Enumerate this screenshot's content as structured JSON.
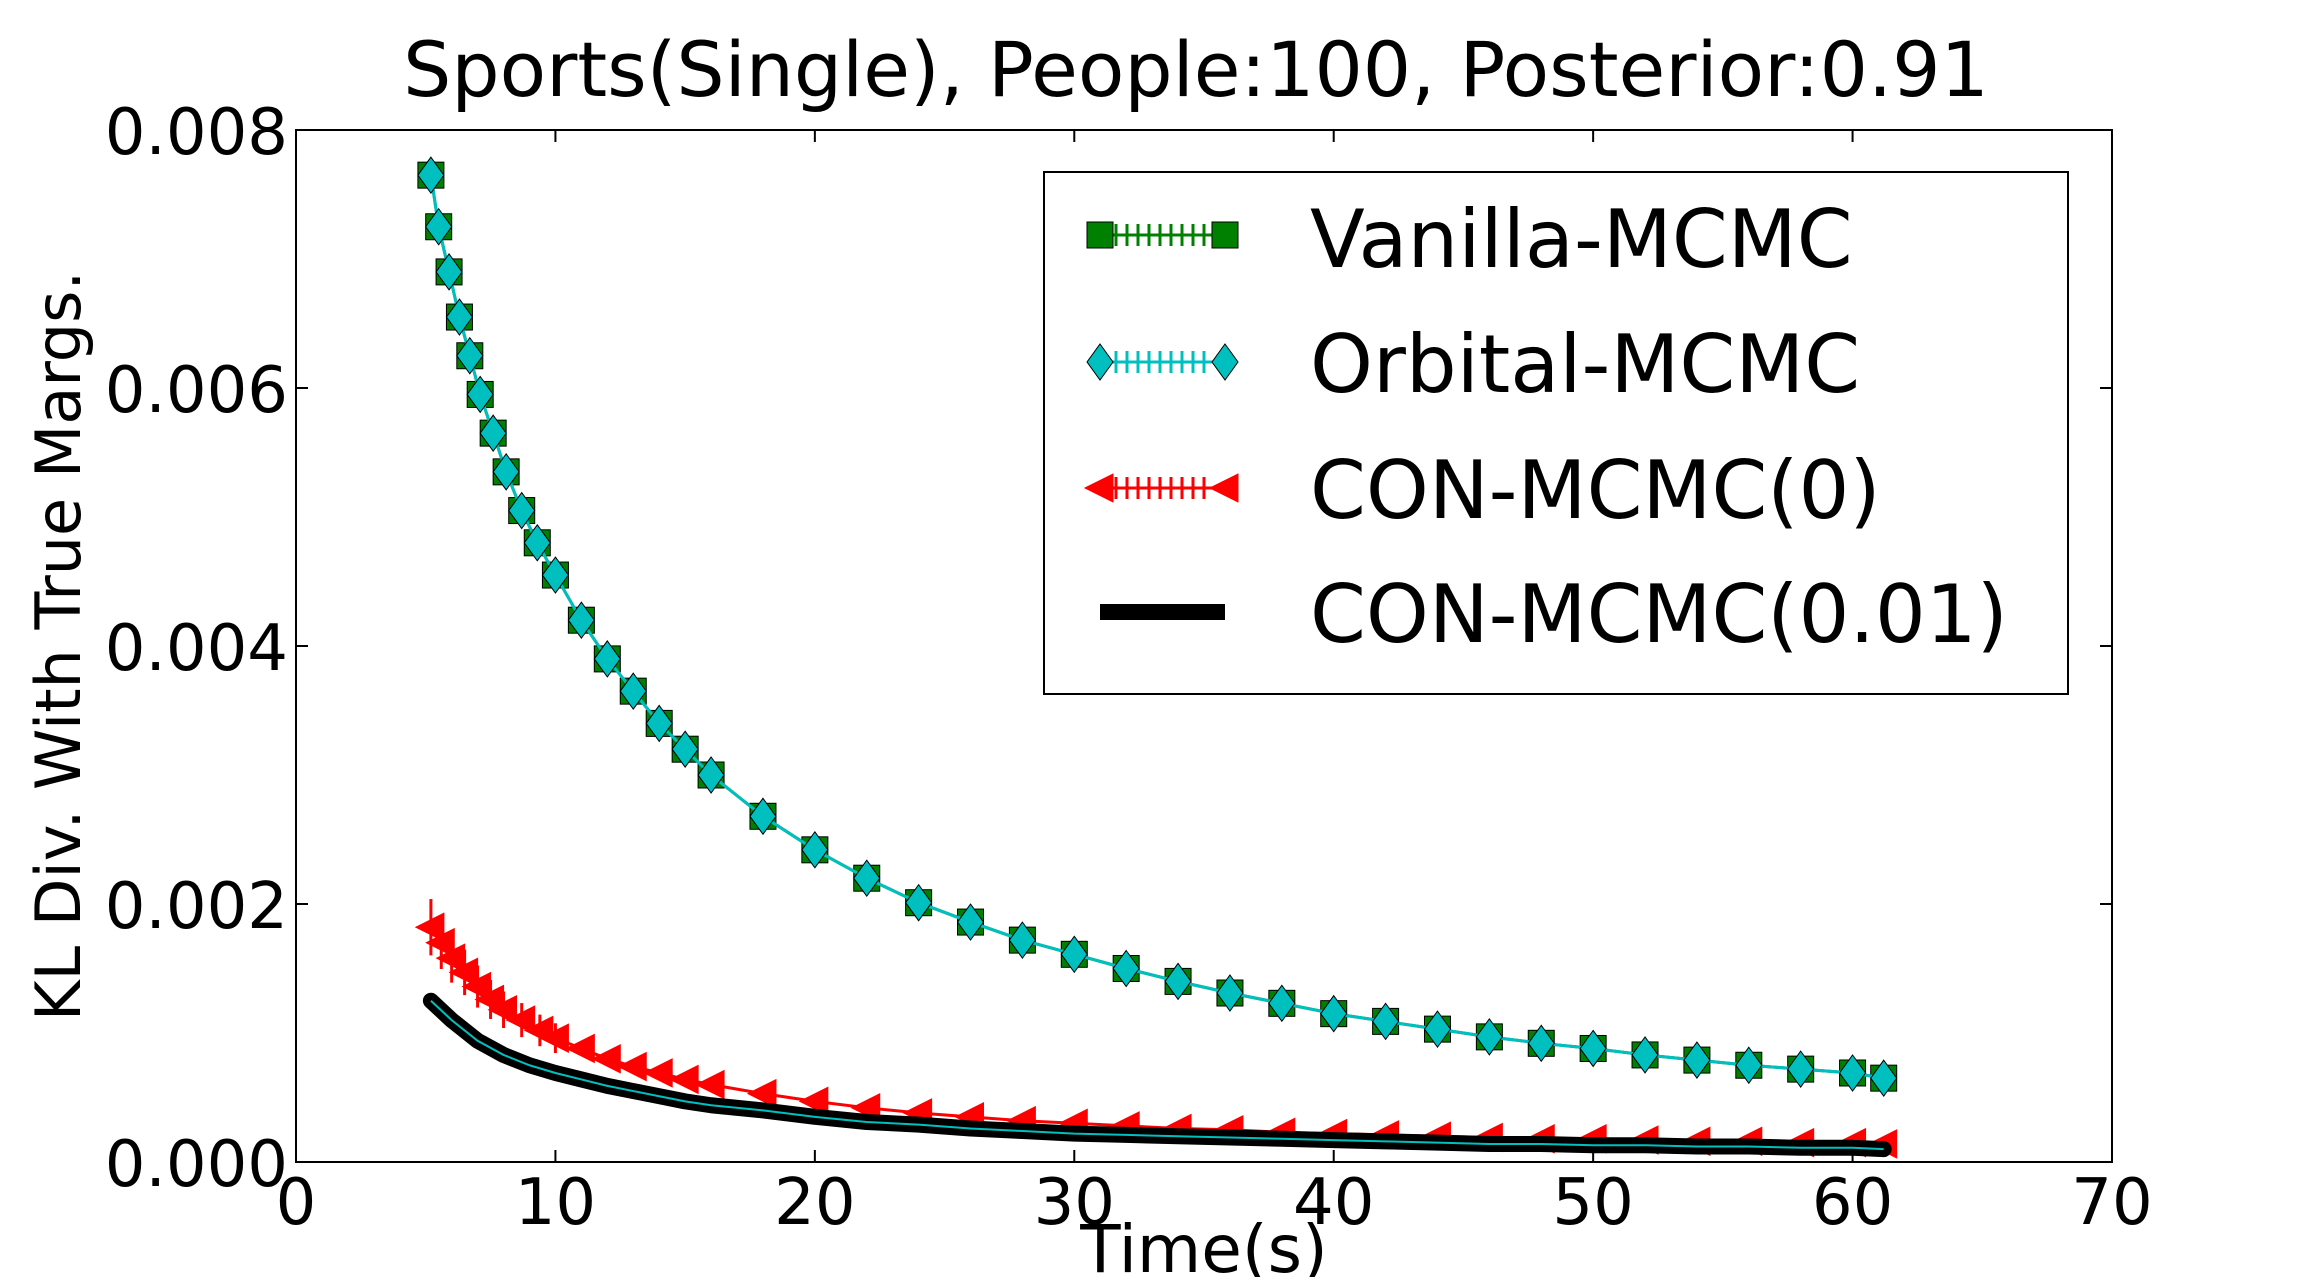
{
  "chart_data": {
    "type": "line",
    "title": "Sports(Single), People:100, Posterior:0.91",
    "xlabel": "Time(s)",
    "ylabel": "KL Div. With True Margs.",
    "xlim": [
      0,
      70
    ],
    "ylim": [
      0,
      0.008
    ],
    "xticks": [
      0,
      10,
      20,
      30,
      40,
      50,
      60,
      70
    ],
    "xtick_labels": [
      "0",
      "10",
      "20",
      "30",
      "40",
      "50",
      "60",
      "70"
    ],
    "yticks": [
      0,
      0.002,
      0.004,
      0.006,
      0.008
    ],
    "ytick_labels": [
      "0.000",
      "0.002",
      "0.004",
      "0.006",
      "0.008"
    ],
    "grid": false,
    "legend_position": "top-right",
    "series": [
      {
        "name": "Vanilla-MCMC",
        "color": "#008000",
        "marker": "square",
        "x": [
          5.2,
          5.5,
          5.9,
          6.3,
          6.7,
          7.1,
          7.6,
          8.1,
          8.7,
          9.3,
          10,
          11,
          12,
          13,
          14,
          15,
          16,
          18,
          20,
          22,
          24,
          26,
          28,
          30,
          32,
          34,
          36,
          38,
          40,
          42,
          44,
          46,
          48,
          50,
          52,
          54,
          56,
          58,
          60,
          61.2
        ],
        "y": [
          0.00765,
          0.00725,
          0.0069,
          0.00655,
          0.00625,
          0.00595,
          0.00565,
          0.00535,
          0.00505,
          0.0048,
          0.00455,
          0.0042,
          0.0039,
          0.00365,
          0.0034,
          0.0032,
          0.003,
          0.00268,
          0.00242,
          0.0022,
          0.00201,
          0.00186,
          0.00172,
          0.00161,
          0.0015,
          0.0014,
          0.00131,
          0.00123,
          0.00115,
          0.00109,
          0.00103,
          0.00097,
          0.00092,
          0.00088,
          0.00083,
          0.00079,
          0.00075,
          0.00072,
          0.00069,
          0.00065
        ]
      },
      {
        "name": "Orbital-MCMC",
        "color": "#00bfbf",
        "marker": "diamond",
        "x": [
          5.2,
          5.5,
          5.9,
          6.3,
          6.7,
          7.1,
          7.6,
          8.1,
          8.7,
          9.3,
          10,
          11,
          12,
          13,
          14,
          15,
          16,
          18,
          20,
          22,
          24,
          26,
          28,
          30,
          32,
          34,
          36,
          38,
          40,
          42,
          44,
          46,
          48,
          50,
          52,
          54,
          56,
          58,
          60,
          61.2
        ],
        "y": [
          0.00765,
          0.00725,
          0.0069,
          0.00655,
          0.00625,
          0.00595,
          0.00565,
          0.00535,
          0.00505,
          0.0048,
          0.00455,
          0.0042,
          0.0039,
          0.00365,
          0.0034,
          0.0032,
          0.003,
          0.00268,
          0.00242,
          0.0022,
          0.00201,
          0.00186,
          0.00172,
          0.00161,
          0.0015,
          0.0014,
          0.00131,
          0.00123,
          0.00115,
          0.00109,
          0.00103,
          0.00097,
          0.00092,
          0.00088,
          0.00083,
          0.00079,
          0.00075,
          0.00072,
          0.00069,
          0.00065
        ]
      },
      {
        "name": "CON-MCMC(0)",
        "color": "#ff0000",
        "marker": "triangle-left",
        "x": [
          5.2,
          5.6,
          6,
          6.5,
          7,
          7.5,
          8,
          8.7,
          9.4,
          10,
          11,
          12,
          13,
          14,
          15,
          16,
          18,
          20,
          22,
          24,
          26,
          28,
          30,
          32,
          34,
          36,
          38,
          40,
          42,
          44,
          46,
          48,
          50,
          52,
          54,
          56,
          58,
          60,
          61.2
        ],
        "y": [
          0.00182,
          0.0017,
          0.00158,
          0.00147,
          0.00136,
          0.00126,
          0.00118,
          0.0011,
          0.00102,
          0.00096,
          0.00088,
          0.0008,
          0.00074,
          0.00069,
          0.00064,
          0.0006,
          0.00053,
          0.00047,
          0.00042,
          0.00038,
          0.00035,
          0.00032,
          0.0003,
          0.00028,
          0.00026,
          0.00025,
          0.00023,
          0.00022,
          0.00021,
          0.0002,
          0.00019,
          0.00018,
          0.00018,
          0.00017,
          0.00016,
          0.00016,
          0.00015,
          0.00015,
          0.00014
        ]
      },
      {
        "name": "CON-MCMC(0.01)",
        "color": "#000000",
        "marker": "none",
        "x": [
          5.2,
          6,
          7,
          8,
          9,
          10,
          11,
          12,
          13,
          14,
          15,
          16,
          18,
          20,
          22,
          24,
          26,
          28,
          30,
          32,
          34,
          36,
          38,
          40,
          42,
          44,
          46,
          48,
          50,
          52,
          54,
          56,
          58,
          60,
          61.2
        ],
        "y": [
          0.00125,
          0.0011,
          0.00094,
          0.00083,
          0.00075,
          0.00069,
          0.00064,
          0.00059,
          0.00055,
          0.00051,
          0.00047,
          0.00044,
          0.0004,
          0.00035,
          0.00031,
          0.00029,
          0.00026,
          0.00024,
          0.00022,
          0.00021,
          0.0002,
          0.00019,
          0.00018,
          0.00017,
          0.00016,
          0.00015,
          0.00014,
          0.00014,
          0.00013,
          0.00013,
          0.00012,
          0.00012,
          0.00011,
          0.00011,
          0.0001
        ]
      }
    ]
  }
}
